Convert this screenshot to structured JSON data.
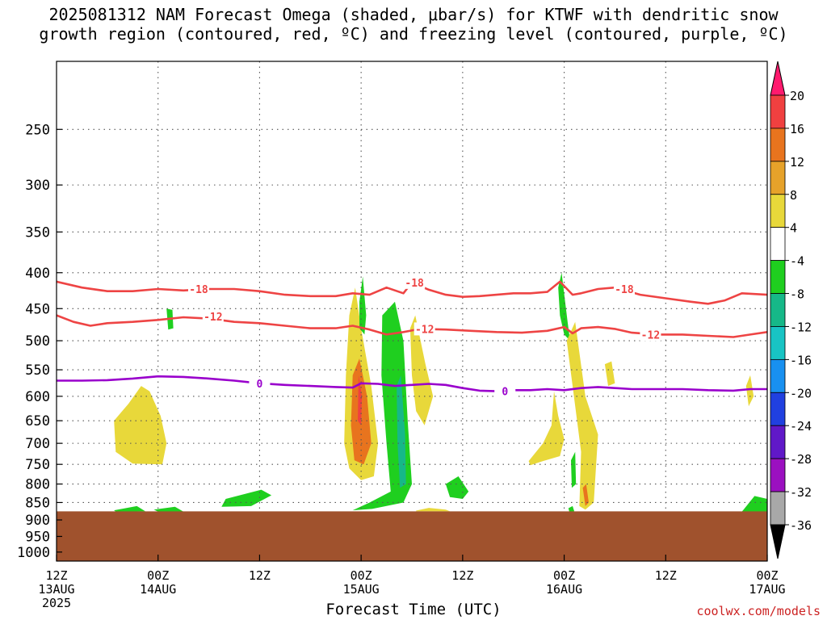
{
  "title_line1": "2025081312 NAM Forecast Omega (shaded, μbar/s) for KTWF with dendritic snow",
  "title_line2": "growth region (contoured, red, ºC) and freezing level (contoured, purple, ºC)",
  "credit": "coolwx.com/models",
  "colors": {
    "dgz_line": "#ee4444",
    "freezing_line": "#9900cc",
    "terrain": "#a0522d",
    "grid": "#555555"
  },
  "chart_data": {
    "type": "heatmap",
    "xlabel": "Forecast Time (UTC)",
    "y_scale": "log",
    "y_inverted": true,
    "ylim": [
      1030,
      200
    ],
    "xlim": [
      0,
      84
    ],
    "y_ticks": [
      250,
      300,
      350,
      400,
      450,
      500,
      550,
      600,
      650,
      700,
      750,
      800,
      850,
      900,
      950,
      1000
    ],
    "x_ticks": [
      {
        "hour": 0,
        "label": "12Z",
        "date": "13AUG",
        "year": "2025"
      },
      {
        "hour": 12,
        "label": "00Z",
        "date": "14AUG",
        "year": ""
      },
      {
        "hour": 24,
        "label": "12Z",
        "date": "",
        "year": ""
      },
      {
        "hour": 36,
        "label": "00Z",
        "date": "15AUG",
        "year": ""
      },
      {
        "hour": 48,
        "label": "12Z",
        "date": "",
        "year": ""
      },
      {
        "hour": 60,
        "label": "00Z",
        "date": "16AUG",
        "year": ""
      },
      {
        "hour": 72,
        "label": "12Z",
        "date": "",
        "year": ""
      },
      {
        "hour": 84,
        "label": "00Z",
        "date": "17AUG",
        "year": ""
      }
    ],
    "terrain_top_hpa": 875,
    "contours": [
      {
        "label": "-18",
        "color_key": "dgz_line",
        "label_at": [
          {
            "hour": 16.8,
            "p": 422
          },
          {
            "hour": 42.3,
            "p": 413
          },
          {
            "hour": 67.1,
            "p": 422
          }
        ],
        "points": [
          [
            0,
            412
          ],
          [
            3,
            420
          ],
          [
            6,
            425
          ],
          [
            9,
            425
          ],
          [
            12,
            422
          ],
          [
            15,
            424
          ],
          [
            18,
            422
          ],
          [
            21,
            422
          ],
          [
            24,
            425
          ],
          [
            27,
            430
          ],
          [
            30,
            432
          ],
          [
            33,
            432
          ],
          [
            35,
            428
          ],
          [
            37,
            430
          ],
          [
            39,
            420
          ],
          [
            41,
            428
          ],
          [
            42,
            413
          ],
          [
            44,
            423
          ],
          [
            46,
            430
          ],
          [
            48,
            433
          ],
          [
            50,
            432
          ],
          [
            52,
            430
          ],
          [
            54,
            428
          ],
          [
            56,
            428
          ],
          [
            58,
            426
          ],
          [
            59.5,
            412
          ],
          [
            61,
            430
          ],
          [
            62,
            428
          ],
          [
            64,
            422
          ],
          [
            66,
            420
          ],
          [
            69,
            430
          ],
          [
            72,
            435
          ],
          [
            75,
            440
          ],
          [
            77,
            443
          ],
          [
            79,
            438
          ],
          [
            81,
            428
          ],
          [
            84,
            430
          ]
        ]
      },
      {
        "label": "-12",
        "color_key": "dgz_line",
        "label_at": [
          {
            "hour": 18.5,
            "p": 462
          },
          {
            "hour": 43.5,
            "p": 481
          },
          {
            "hour": 70.2,
            "p": 490
          }
        ],
        "points": [
          [
            0,
            460
          ],
          [
            2,
            470
          ],
          [
            4,
            476
          ],
          [
            6,
            472
          ],
          [
            9,
            470
          ],
          [
            12,
            467
          ],
          [
            15,
            463
          ],
          [
            18,
            465
          ],
          [
            21,
            470
          ],
          [
            24,
            472
          ],
          [
            27,
            476
          ],
          [
            30,
            480
          ],
          [
            33,
            480
          ],
          [
            35,
            476
          ],
          [
            37,
            482
          ],
          [
            39,
            490
          ],
          [
            41,
            486
          ],
          [
            43,
            481
          ],
          [
            46,
            482
          ],
          [
            49,
            484
          ],
          [
            52,
            486
          ],
          [
            55,
            487
          ],
          [
            58,
            484
          ],
          [
            60,
            478
          ],
          [
            61,
            488
          ],
          [
            62,
            480
          ],
          [
            64,
            478
          ],
          [
            66,
            481
          ],
          [
            68,
            487
          ],
          [
            71,
            490
          ],
          [
            74,
            490
          ],
          [
            77,
            492
          ],
          [
            80,
            494
          ],
          [
            82,
            490
          ],
          [
            84,
            486
          ]
        ]
      },
      {
        "label": "0",
        "color_key": "freezing_line",
        "label_at": [
          {
            "hour": 24,
            "p": 575
          },
          {
            "hour": 53,
            "p": 590
          }
        ],
        "points": [
          [
            0,
            570
          ],
          [
            3,
            570
          ],
          [
            6,
            569
          ],
          [
            9,
            566
          ],
          [
            12,
            562
          ],
          [
            15,
            563
          ],
          [
            18,
            566
          ],
          [
            21,
            570
          ],
          [
            24,
            575
          ],
          [
            27,
            578
          ],
          [
            30,
            580
          ],
          [
            33,
            582
          ],
          [
            35,
            583
          ],
          [
            36,
            575
          ],
          [
            38,
            576
          ],
          [
            40,
            580
          ],
          [
            42,
            578
          ],
          [
            44,
            576
          ],
          [
            46,
            578
          ],
          [
            48,
            584
          ],
          [
            50,
            589
          ],
          [
            52,
            590
          ],
          [
            54,
            588
          ],
          [
            56,
            588
          ],
          [
            58,
            586
          ],
          [
            60,
            588
          ],
          [
            62,
            584
          ],
          [
            64,
            582
          ],
          [
            66,
            584
          ],
          [
            68,
            586
          ],
          [
            71,
            586
          ],
          [
            74,
            586
          ],
          [
            77,
            588
          ],
          [
            80,
            589
          ],
          [
            82,
            586
          ],
          [
            84,
            586
          ]
        ]
      }
    ],
    "omega_regions": [
      {
        "value": 6,
        "points": [
          [
            6.8,
            650
          ],
          [
            8.5,
            615
          ],
          [
            10,
            580
          ],
          [
            11,
            590
          ],
          [
            12.3,
            640
          ],
          [
            13,
            700
          ],
          [
            12.5,
            750
          ],
          [
            9,
            748
          ],
          [
            7,
            720
          ]
        ]
      },
      {
        "value": -6,
        "points": [
          [
            13,
            450
          ],
          [
            13.7,
            452
          ],
          [
            13.8,
            480
          ],
          [
            13.2,
            482
          ]
        ]
      },
      {
        "value": 6,
        "points": [
          [
            34.6,
            460
          ],
          [
            35.3,
            420
          ],
          [
            36,
            480
          ],
          [
            37.2,
            580
          ],
          [
            38,
            700
          ],
          [
            37.5,
            780
          ],
          [
            36,
            790
          ],
          [
            34.6,
            760
          ],
          [
            34,
            700
          ],
          [
            34.2,
            560
          ]
        ]
      },
      {
        "value": 12,
        "points": [
          [
            35,
            560
          ],
          [
            35.8,
            530
          ],
          [
            36.7,
            600
          ],
          [
            37.2,
            700
          ],
          [
            36.3,
            750
          ],
          [
            35.2,
            740
          ],
          [
            34.8,
            660
          ]
        ]
      },
      {
        "value": 16,
        "points": [
          [
            35.7,
            560
          ],
          [
            36.1,
            600
          ],
          [
            36,
            660
          ],
          [
            35.6,
            650
          ]
        ]
      },
      {
        "value": -6,
        "points": [
          [
            35.8,
            440
          ],
          [
            36.2,
            405
          ],
          [
            36.6,
            460
          ],
          [
            36.4,
            490
          ],
          [
            35.8,
            480
          ]
        ]
      },
      {
        "value": -6,
        "points": [
          [
            38.5,
            460
          ],
          [
            40,
            440
          ],
          [
            41,
            500
          ],
          [
            41.5,
            650
          ],
          [
            42,
            800
          ],
          [
            41,
            850
          ],
          [
            37.3,
            868
          ],
          [
            35,
            872
          ],
          [
            37,
            850
          ],
          [
            39.5,
            820
          ],
          [
            39,
            700
          ],
          [
            38.4,
            560
          ]
        ]
      },
      {
        "value": -12,
        "points": [
          [
            40.2,
            580
          ],
          [
            40.7,
            560
          ],
          [
            41.2,
            680
          ],
          [
            41.3,
            800
          ],
          [
            40.6,
            810
          ],
          [
            40.3,
            700
          ]
        ]
      },
      {
        "value": 6,
        "points": [
          [
            41.8,
            480
          ],
          [
            42.4,
            460
          ],
          [
            43.6,
            540
          ],
          [
            44.5,
            600
          ],
          [
            43.5,
            660
          ],
          [
            42.5,
            630
          ],
          [
            42,
            560
          ]
        ]
      },
      {
        "value": 6,
        "points": [
          [
            42.5,
            873
          ],
          [
            44,
            865
          ],
          [
            46,
            870
          ],
          [
            46.5,
            875
          ],
          [
            42.5,
            875
          ]
        ]
      },
      {
        "value": -6,
        "points": [
          [
            46,
            800
          ],
          [
            47.5,
            780
          ],
          [
            48.7,
            820
          ],
          [
            48,
            840
          ],
          [
            46.5,
            835
          ]
        ]
      },
      {
        "value": 6,
        "points": [
          [
            55.8,
            742
          ],
          [
            57.5,
            700
          ],
          [
            58.5,
            660
          ],
          [
            58.8,
            590
          ],
          [
            59.3,
            640
          ],
          [
            60,
            690
          ],
          [
            59.5,
            730
          ],
          [
            57.5,
            742
          ],
          [
            56,
            752
          ]
        ]
      },
      {
        "value": -6,
        "points": [
          [
            59.3,
            420
          ],
          [
            59.7,
            400
          ],
          [
            60.4,
            470
          ],
          [
            60.7,
            500
          ],
          [
            60,
            490
          ],
          [
            59.5,
            460
          ]
        ]
      },
      {
        "value": -6,
        "points": [
          [
            60.8,
            740
          ],
          [
            61.3,
            720
          ],
          [
            61.4,
            800
          ],
          [
            60.9,
            810
          ]
        ]
      },
      {
        "value": 6,
        "points": [
          [
            60.3,
            500
          ],
          [
            61.3,
            470
          ],
          [
            62.5,
            600
          ],
          [
            64,
            680
          ],
          [
            63.5,
            850
          ],
          [
            62.5,
            870
          ],
          [
            61.8,
            860
          ],
          [
            62,
            720
          ],
          [
            61,
            580
          ]
        ]
      },
      {
        "value": 12,
        "points": [
          [
            62.2,
            810
          ],
          [
            62.6,
            800
          ],
          [
            62.9,
            850
          ],
          [
            62.5,
            860
          ]
        ]
      },
      {
        "value": 6,
        "points": [
          [
            64.8,
            540
          ],
          [
            65.6,
            535
          ],
          [
            66,
            575
          ],
          [
            65.2,
            580
          ]
        ]
      },
      {
        "value": 6,
        "points": [
          [
            81.5,
            580
          ],
          [
            82,
            560
          ],
          [
            82.4,
            600
          ],
          [
            81.8,
            620
          ]
        ]
      },
      {
        "value": -6,
        "points": [
          [
            20,
            840
          ],
          [
            24.2,
            815
          ],
          [
            25.4,
            830
          ],
          [
            23,
            860
          ],
          [
            19.5,
            862
          ]
        ]
      },
      {
        "value": -6,
        "points": [
          [
            6.8,
            872
          ],
          [
            9.5,
            860
          ],
          [
            10.5,
            875
          ],
          [
            7,
            876
          ]
        ]
      },
      {
        "value": -6,
        "points": [
          [
            11.5,
            870
          ],
          [
            14,
            862
          ],
          [
            15,
            876
          ],
          [
            12,
            876
          ]
        ]
      },
      {
        "value": -6,
        "points": [
          [
            60.5,
            866
          ],
          [
            61,
            860
          ],
          [
            61.2,
            875
          ],
          [
            60.6,
            876
          ]
        ]
      },
      {
        "value": -6,
        "points": [
          [
            81.2,
            870
          ],
          [
            82.5,
            832
          ],
          [
            84,
            840
          ],
          [
            84,
            876
          ],
          [
            81,
            876
          ]
        ]
      }
    ],
    "colorbar": {
      "labels": [
        "20",
        "16",
        "12",
        "8",
        "4",
        "-4",
        "-8",
        "-12",
        "-16",
        "-20",
        "-24",
        "-28",
        "-32",
        "-36"
      ],
      "colors": [
        "#ff1a6e",
        "#f04040",
        "#e8741e",
        "#e6a22a",
        "#e8d83a",
        "#ffffff",
        "#1fcf1f",
        "#16b888",
        "#18c4c4",
        "#1890f0",
        "#2040e0",
        "#6018c8",
        "#9b10c0",
        "#a8a8a8",
        "#000000"
      ]
    }
  }
}
